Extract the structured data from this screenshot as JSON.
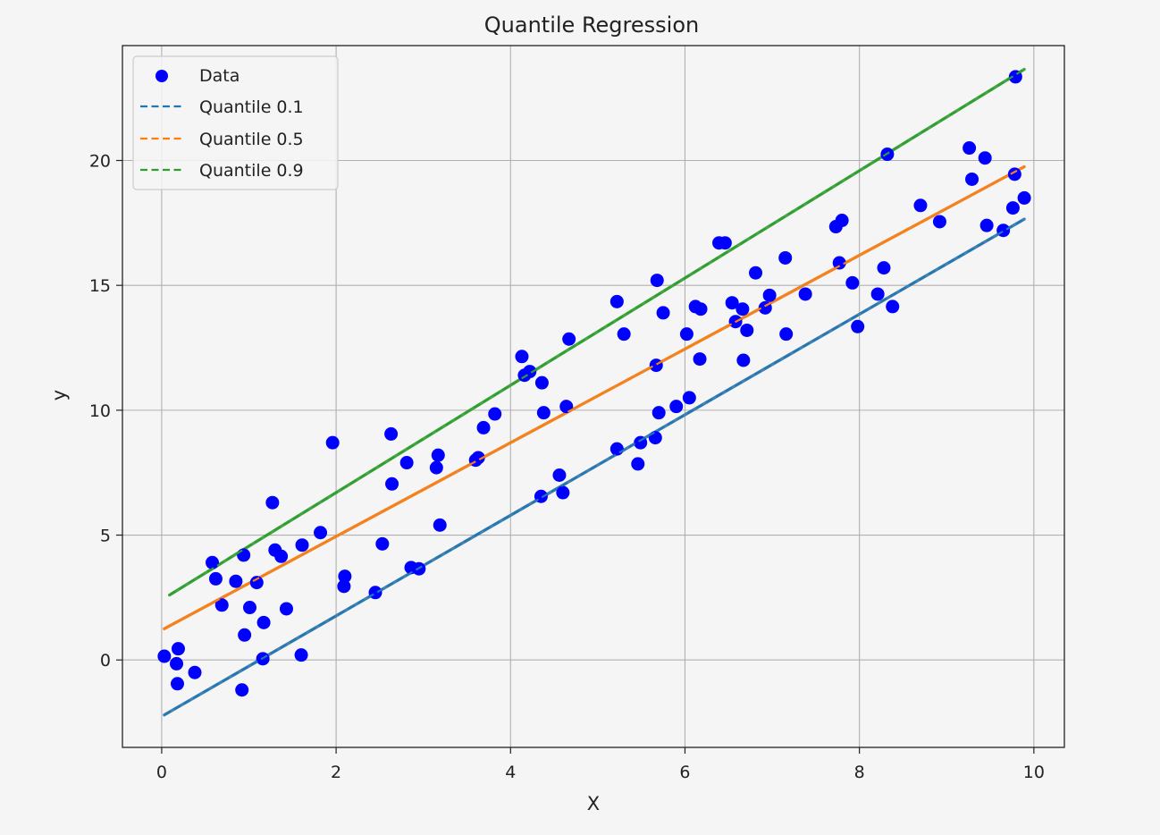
{
  "chart_data": {
    "type": "scatter",
    "title": "Quantile Regression",
    "xlabel": "X",
    "ylabel": "y",
    "xlim": [
      -0.45,
      10.35
    ],
    "ylim": [
      -3.5,
      24.6
    ],
    "grid": true,
    "legend_position": "top-left",
    "x_ticks": [
      0,
      2,
      4,
      6,
      8,
      10
    ],
    "x_tick_labels": [
      "0",
      "2",
      "4",
      "6",
      "8",
      "10"
    ],
    "y_ticks": [
      0,
      5,
      10,
      15,
      20
    ],
    "y_tick_labels": [
      "0",
      "5",
      "10",
      "15",
      "20"
    ],
    "scatter": {
      "name": "Data",
      "color": "#0000ff",
      "points": [
        [
          0.03,
          0.15
        ],
        [
          0.19,
          0.45
        ],
        [
          0.17,
          -0.15
        ],
        [
          0.18,
          -0.95
        ],
        [
          0.38,
          -0.5
        ],
        [
          0.58,
          3.9
        ],
        [
          0.62,
          3.25
        ],
        [
          0.69,
          2.2
        ],
        [
          0.85,
          3.15
        ],
        [
          0.92,
          -1.2
        ],
        [
          0.94,
          4.2
        ],
        [
          0.95,
          1.0
        ],
        [
          1.01,
          2.1
        ],
        [
          1.09,
          3.1
        ],
        [
          1.16,
          0.05
        ],
        [
          1.17,
          1.5
        ],
        [
          1.27,
          6.3
        ],
        [
          1.3,
          4.4
        ],
        [
          1.37,
          4.15
        ],
        [
          1.43,
          2.05
        ],
        [
          1.6,
          0.2
        ],
        [
          1.61,
          4.6
        ],
        [
          1.82,
          5.1
        ],
        [
          1.96,
          8.7
        ],
        [
          2.09,
          2.95
        ],
        [
          2.1,
          3.35
        ],
        [
          2.45,
          2.7
        ],
        [
          2.53,
          4.65
        ],
        [
          2.63,
          9.05
        ],
        [
          2.64,
          7.05
        ],
        [
          2.81,
          7.9
        ],
        [
          2.86,
          3.7
        ],
        [
          2.95,
          3.65
        ],
        [
          3.15,
          7.7
        ],
        [
          3.17,
          8.2
        ],
        [
          3.19,
          5.4
        ],
        [
          3.6,
          8.0
        ],
        [
          3.63,
          8.1
        ],
        [
          3.69,
          9.3
        ],
        [
          3.82,
          9.85
        ],
        [
          4.13,
          12.15
        ],
        [
          4.16,
          11.4
        ],
        [
          4.22,
          11.55
        ],
        [
          4.35,
          6.55
        ],
        [
          4.36,
          11.1
        ],
        [
          4.38,
          9.9
        ],
        [
          4.56,
          7.4
        ],
        [
          4.6,
          6.7
        ],
        [
          4.64,
          10.15
        ],
        [
          4.67,
          12.85
        ],
        [
          5.22,
          14.35
        ],
        [
          5.22,
          8.45
        ],
        [
          5.3,
          13.05
        ],
        [
          5.46,
          7.85
        ],
        [
          5.49,
          8.7
        ],
        [
          5.66,
          8.9
        ],
        [
          5.67,
          11.8
        ],
        [
          5.68,
          15.2
        ],
        [
          5.7,
          9.9
        ],
        [
          5.75,
          13.9
        ],
        [
          5.9,
          10.15
        ],
        [
          6.02,
          13.05
        ],
        [
          6.05,
          10.5
        ],
        [
          6.12,
          14.15
        ],
        [
          6.17,
          12.05
        ],
        [
          6.18,
          14.05
        ],
        [
          6.39,
          16.7
        ],
        [
          6.46,
          16.7
        ],
        [
          6.54,
          14.3
        ],
        [
          6.58,
          13.55
        ],
        [
          6.66,
          14.05
        ],
        [
          6.67,
          12.0
        ],
        [
          6.71,
          13.2
        ],
        [
          6.81,
          15.5
        ],
        [
          6.92,
          14.1
        ],
        [
          6.97,
          14.6
        ],
        [
          7.15,
          16.1
        ],
        [
          7.16,
          13.05
        ],
        [
          7.38,
          14.65
        ],
        [
          7.73,
          17.35
        ],
        [
          7.77,
          15.9
        ],
        [
          7.8,
          17.6
        ],
        [
          7.92,
          15.1
        ],
        [
          7.98,
          13.35
        ],
        [
          8.21,
          14.65
        ],
        [
          8.28,
          15.7
        ],
        [
          8.32,
          20.25
        ],
        [
          8.38,
          14.15
        ],
        [
          8.7,
          18.2
        ],
        [
          8.92,
          17.55
        ],
        [
          9.26,
          20.5
        ],
        [
          9.29,
          19.25
        ],
        [
          9.44,
          20.1
        ],
        [
          9.46,
          17.4
        ],
        [
          9.65,
          17.2
        ],
        [
          9.76,
          18.1
        ],
        [
          9.78,
          19.45
        ],
        [
          9.79,
          23.35
        ],
        [
          9.89,
          18.5
        ]
      ]
    },
    "series": [
      {
        "name": "Quantile 0.1",
        "color": "#1f77b4",
        "x": [
          0.03,
          9.89
        ],
        "y": [
          -2.2,
          17.65
        ]
      },
      {
        "name": "Quantile 0.5",
        "color": "#ff7f0e",
        "x": [
          0.03,
          9.89
        ],
        "y": [
          1.25,
          19.75
        ]
      },
      {
        "name": "Quantile 0.9",
        "color": "#2ca02c",
        "x": [
          0.09,
          9.89
        ],
        "y": [
          2.6,
          23.65
        ]
      }
    ],
    "fit_colors": {
      "Quantile 0.1": "#3a7cad",
      "Quantile 0.5": "#e98126",
      "Quantile 0.9": "#3ca03c"
    }
  }
}
